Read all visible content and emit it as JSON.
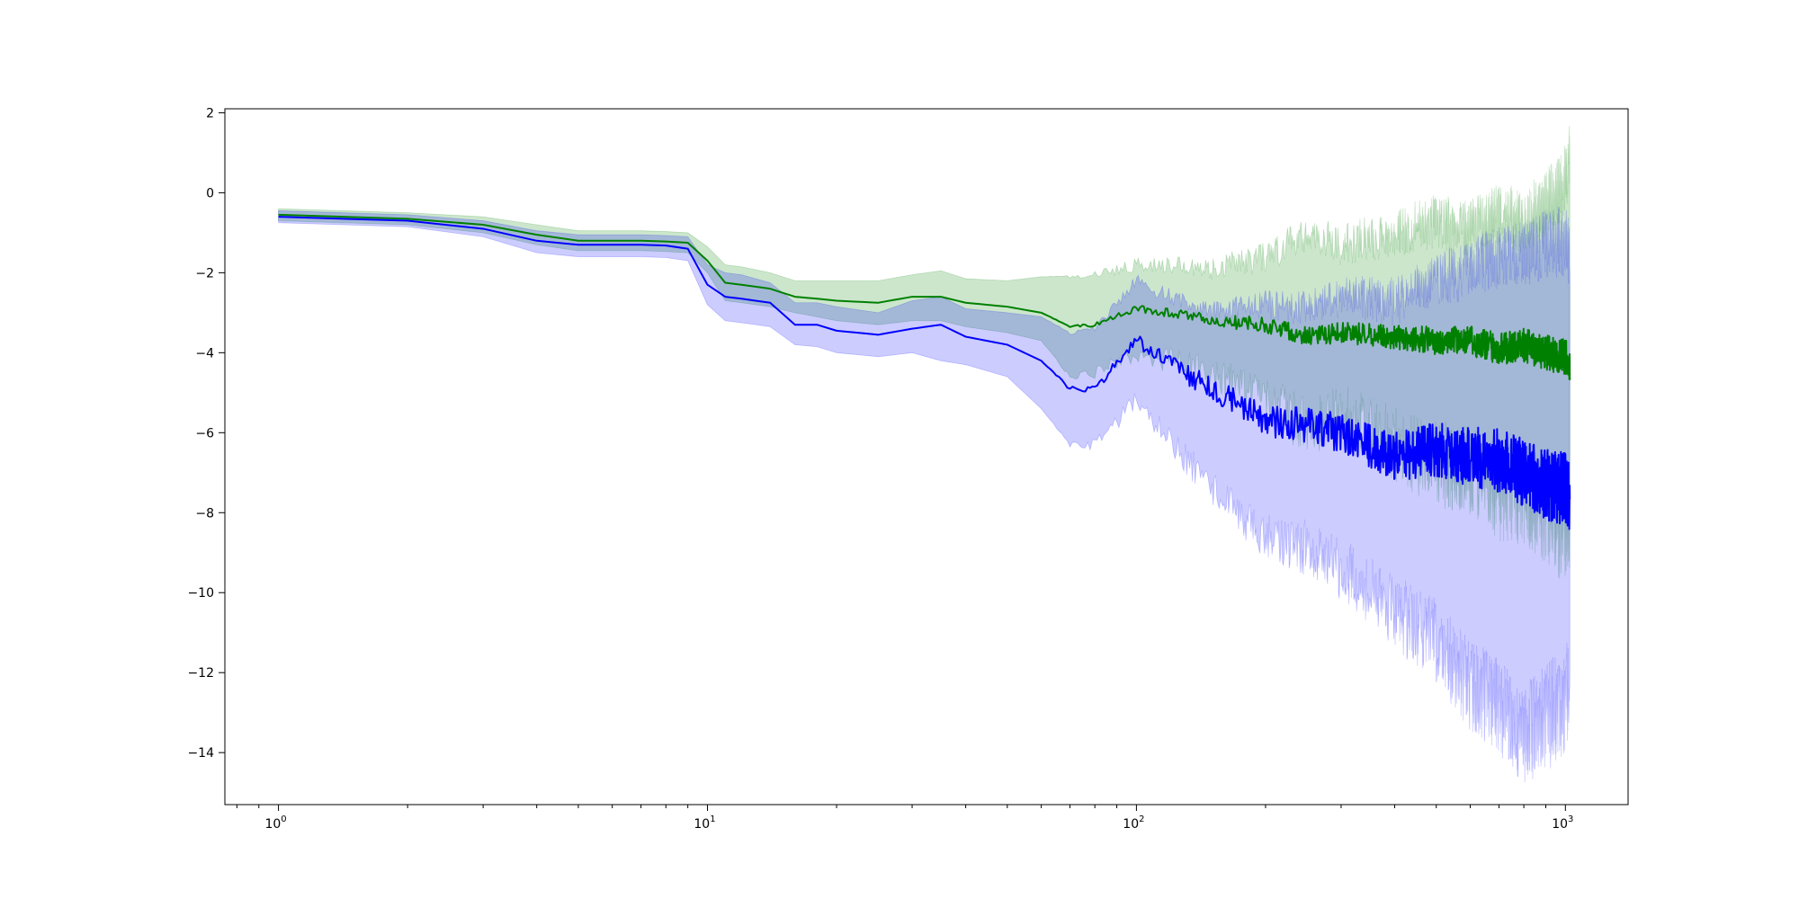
{
  "chart_data": {
    "type": "line",
    "title": "",
    "xlabel": "",
    "ylabel": "",
    "xscale": "log",
    "xlim": [
      0.75,
      1400
    ],
    "ylim": [
      -15.3,
      2.1
    ],
    "grid": false,
    "legend": "none",
    "x_ticks": [
      {
        "value": 1,
        "base": "10",
        "exp": "0"
      },
      {
        "value": 10,
        "base": "10",
        "exp": "1"
      },
      {
        "value": 100,
        "base": "10",
        "exp": "2"
      },
      {
        "value": 1000,
        "base": "10",
        "exp": "3"
      }
    ],
    "y_ticks": [
      {
        "value": 2,
        "label": "2"
      },
      {
        "value": 0,
        "label": "0"
      },
      {
        "value": -2,
        "label": "−2"
      },
      {
        "value": -4,
        "label": "−4"
      },
      {
        "value": -6,
        "label": "−6"
      },
      {
        "value": -8,
        "label": "−8"
      },
      {
        "value": -10,
        "label": "−10"
      },
      {
        "value": -12,
        "label": "−12"
      },
      {
        "value": -14,
        "label": "−14"
      }
    ],
    "series": [
      {
        "color": "#008000",
        "band_color": "#008000",
        "band_opacity": 0.2,
        "x": [
          1,
          2,
          3,
          4,
          5,
          6,
          7,
          8,
          9,
          10,
          11,
          12,
          14,
          16,
          18,
          20,
          25,
          30,
          35,
          40,
          50,
          60,
          70,
          80,
          100,
          120,
          150,
          200,
          250,
          300,
          400,
          500,
          600,
          700,
          800,
          900,
          1000,
          1024
        ],
        "mean": [
          -0.55,
          -0.65,
          -0.8,
          -1.05,
          -1.2,
          -1.2,
          -1.2,
          -1.22,
          -1.25,
          -1.7,
          -2.25,
          -2.3,
          -2.4,
          -2.6,
          -2.65,
          -2.7,
          -2.75,
          -2.6,
          -2.6,
          -2.75,
          -2.85,
          -3.0,
          -3.35,
          -3.3,
          -2.9,
          -3.0,
          -3.2,
          -3.3,
          -3.6,
          -3.5,
          -3.6,
          -3.7,
          -3.7,
          -3.9,
          -3.8,
          -4.0,
          -4.1,
          -4.3
        ],
        "upper": [
          -0.4,
          -0.5,
          -0.6,
          -0.8,
          -0.95,
          -0.95,
          -0.95,
          -0.97,
          -1.0,
          -1.35,
          -1.8,
          -1.85,
          -2.0,
          -2.2,
          -2.2,
          -2.2,
          -2.2,
          -2.05,
          -1.95,
          -2.15,
          -2.2,
          -2.1,
          -2.1,
          -2.05,
          -1.8,
          -1.8,
          -1.9,
          -1.6,
          -1.0,
          -1.3,
          -1.0,
          -0.7,
          -0.9,
          -0.5,
          -0.7,
          -0.3,
          0.3,
          0.9
        ],
        "lower": [
          -0.7,
          -0.8,
          -1.0,
          -1.3,
          -1.45,
          -1.45,
          -1.45,
          -1.47,
          -1.5,
          -2.0,
          -2.7,
          -2.75,
          -2.85,
          -3.0,
          -3.1,
          -3.2,
          -3.3,
          -3.2,
          -3.2,
          -3.35,
          -3.5,
          -3.7,
          -4.6,
          -4.5,
          -4.0,
          -4.2,
          -4.6,
          -5.1,
          -5.9,
          -5.6,
          -6.3,
          -6.8,
          -6.9,
          -7.5,
          -7.5,
          -8.0,
          -8.4,
          -8.6
        ]
      },
      {
        "color": "#0000ff",
        "band_color": "#0000ff",
        "band_opacity": 0.2,
        "x": [
          1,
          2,
          3,
          4,
          5,
          6,
          7,
          8,
          9,
          10,
          11,
          12,
          14,
          16,
          18,
          20,
          25,
          30,
          35,
          40,
          50,
          60,
          70,
          80,
          100,
          120,
          150,
          200,
          250,
          300,
          400,
          500,
          600,
          700,
          800,
          900,
          1000,
          1024
        ],
        "mean": [
          -0.6,
          -0.7,
          -0.9,
          -1.2,
          -1.3,
          -1.3,
          -1.3,
          -1.32,
          -1.4,
          -2.3,
          -2.6,
          -2.65,
          -2.75,
          -3.3,
          -3.3,
          -3.45,
          -3.55,
          -3.4,
          -3.3,
          -3.6,
          -3.8,
          -4.2,
          -4.9,
          -4.9,
          -3.7,
          -4.3,
          -4.9,
          -5.7,
          -5.8,
          -6.0,
          -6.6,
          -6.4,
          -6.6,
          -6.7,
          -7.0,
          -7.3,
          -7.4,
          -7.7
        ],
        "upper": [
          -0.45,
          -0.55,
          -0.7,
          -0.95,
          -1.05,
          -1.05,
          -1.05,
          -1.07,
          -1.1,
          -1.8,
          -2.0,
          -2.05,
          -2.25,
          -2.75,
          -2.75,
          -2.85,
          -3.0,
          -2.7,
          -2.6,
          -2.9,
          -3.0,
          -3.1,
          -3.5,
          -3.4,
          -2.2,
          -2.6,
          -3.0,
          -2.8,
          -2.9,
          -2.6,
          -2.7,
          -2.2,
          -1.9,
          -1.6,
          -1.5,
          -1.3,
          -1.2,
          -1.5
        ],
        "lower": [
          -0.75,
          -0.85,
          -1.1,
          -1.5,
          -1.6,
          -1.6,
          -1.6,
          -1.62,
          -1.7,
          -2.8,
          -3.2,
          -3.25,
          -3.35,
          -3.8,
          -3.85,
          -4.0,
          -4.1,
          -4.0,
          -4.2,
          -4.3,
          -4.6,
          -5.4,
          -6.3,
          -6.3,
          -5.2,
          -6.2,
          -7.4,
          -8.6,
          -8.9,
          -9.4,
          -10.5,
          -11.2,
          -12.3,
          -12.8,
          -13.5,
          -13.2,
          -12.6,
          -12.7
        ]
      }
    ]
  }
}
